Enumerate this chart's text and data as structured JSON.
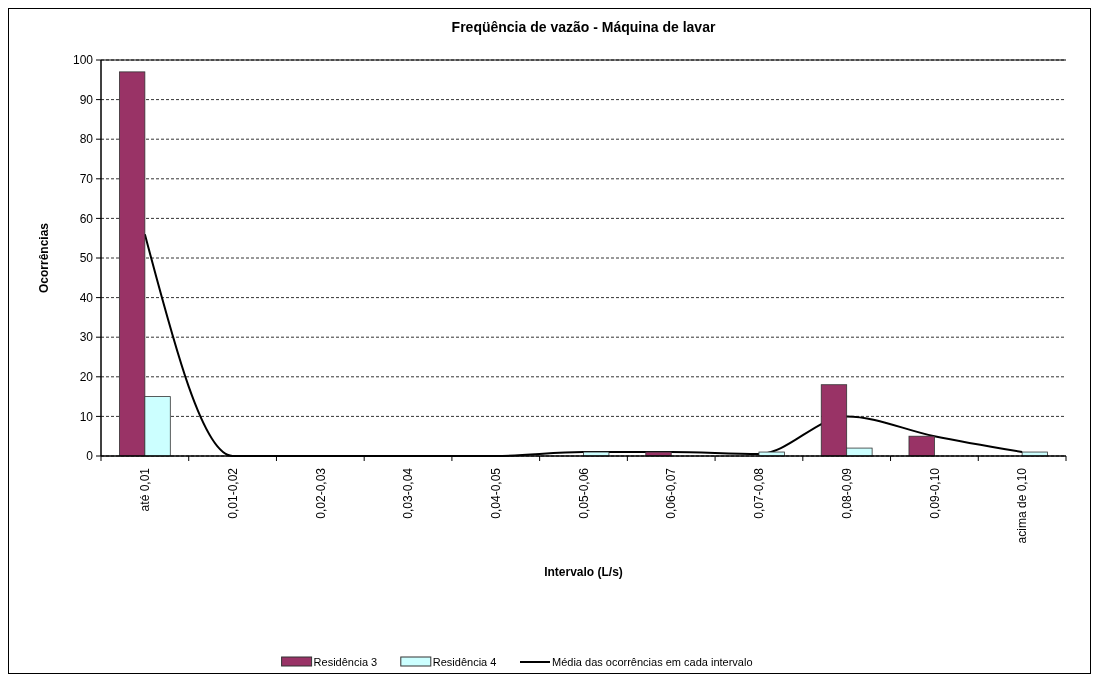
{
  "chart_data": {
    "type": "bar",
    "title": "Freqüência de vazão - Máquina de lavar",
    "xlabel": "Intervalo (L/s)",
    "ylabel": "Ocorrências",
    "categories": [
      "até 0,01",
      "0,01-0,02",
      "0,02-0,03",
      "0,03-0,04",
      "0,04-0,05",
      "0,05-0,06",
      "0,06-0,07",
      "0,07-0,08",
      "0,08-0,09",
      "0,09-0,10",
      "acima de 0,10"
    ],
    "series": [
      {
        "name": "Residência 3",
        "color": "#993366",
        "values": [
          97,
          0,
          0,
          0,
          0,
          0,
          1,
          0,
          18,
          5,
          0
        ]
      },
      {
        "name": "Residência 4",
        "color": "#ccffff",
        "values": [
          15,
          0,
          0,
          0,
          0,
          1,
          0,
          1,
          2,
          0,
          1
        ]
      },
      {
        "name": "Média das ocorrências em cada intervalo",
        "type": "line",
        "color": "#000000",
        "values": [
          56,
          0,
          0,
          0,
          0,
          1,
          1,
          0.5,
          10,
          5,
          1
        ]
      }
    ],
    "ylim": [
      0,
      100
    ],
    "yticks": [
      0,
      10,
      20,
      30,
      40,
      50,
      60,
      70,
      80,
      90,
      100
    ],
    "grid": "y",
    "legend": "bottom",
    "marker": "none",
    "line_style": "solid"
  }
}
